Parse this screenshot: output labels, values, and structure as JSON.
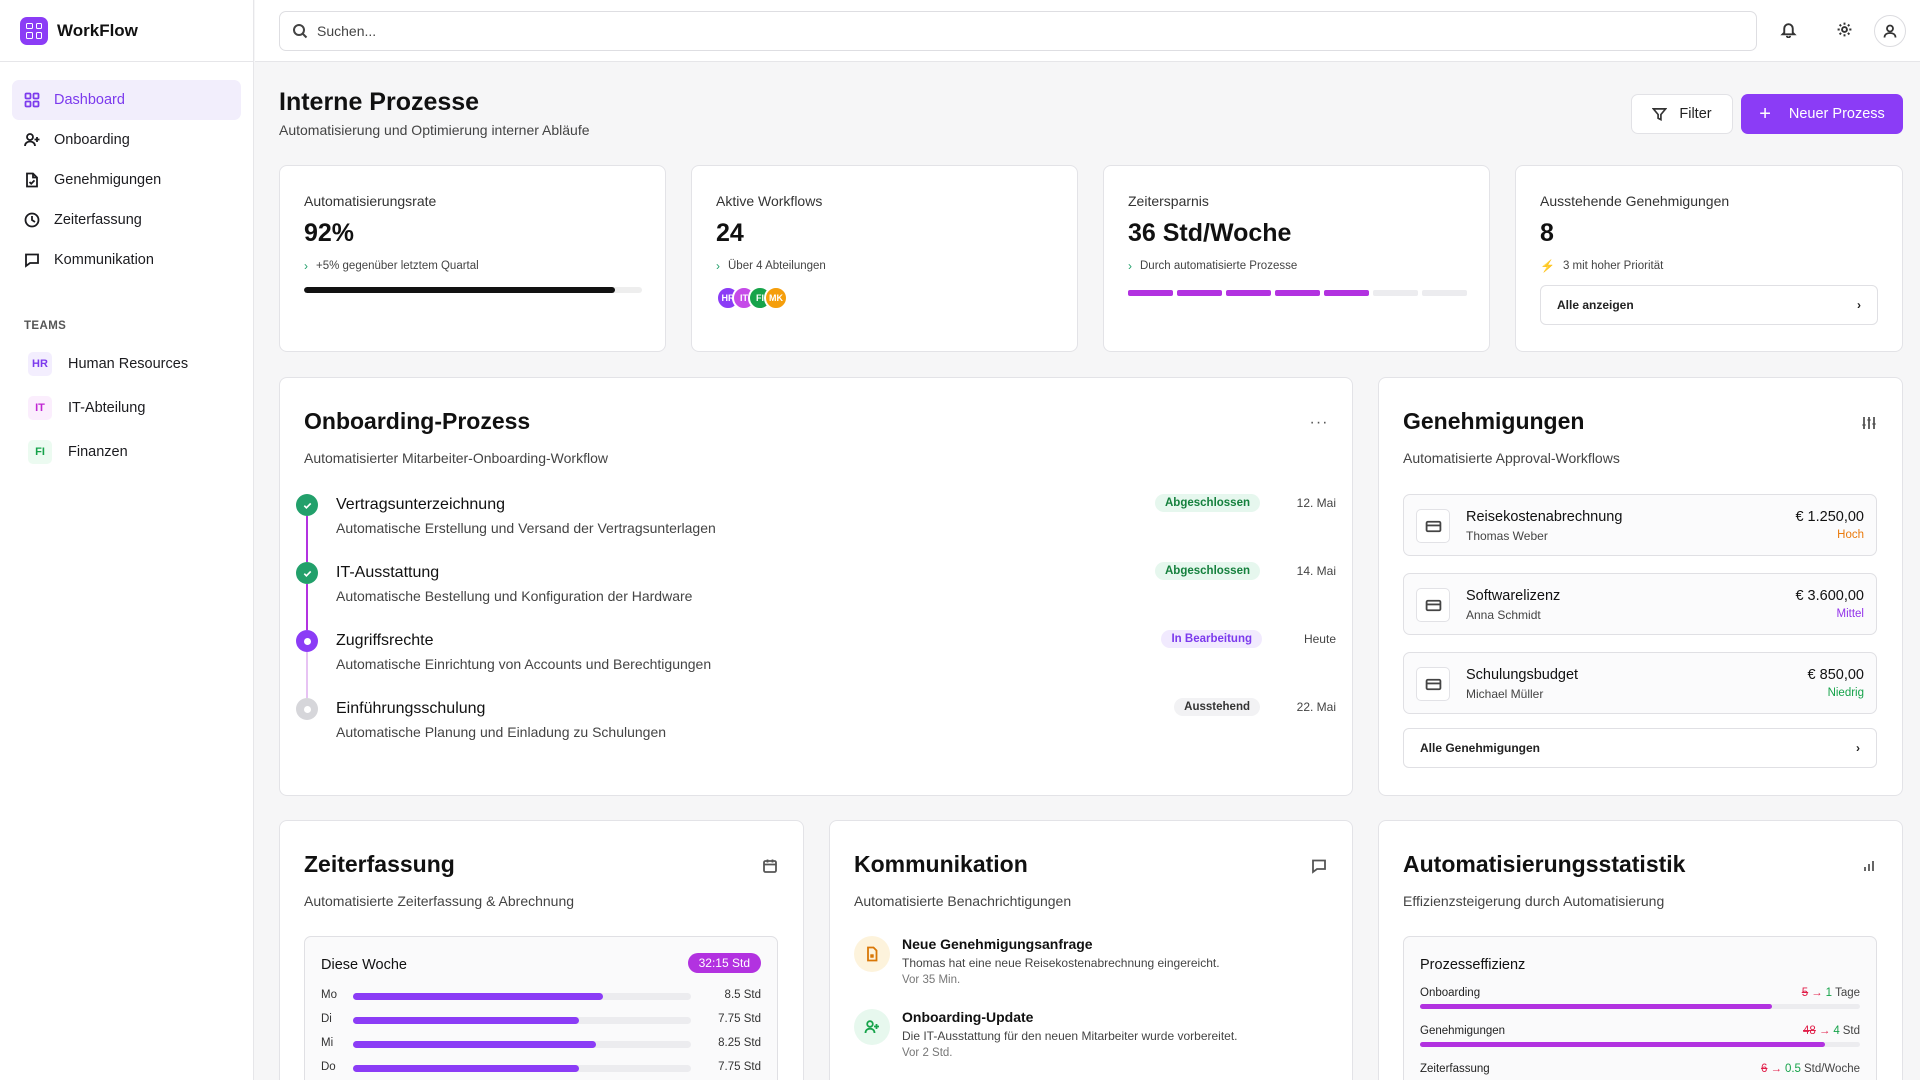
{
  "app": {
    "name": "WorkFlow"
  },
  "nav": [
    {
      "label": "Dashboard",
      "icon": "grid-icon",
      "active": true
    },
    {
      "label": "Onboarding",
      "icon": "user-plus-icon"
    },
    {
      "label": "Genehmigungen",
      "icon": "file-check-icon"
    },
    {
      "label": "Zeiterfassung",
      "icon": "clock-icon"
    },
    {
      "label": "Kommunikation",
      "icon": "message-icon"
    }
  ],
  "teams": {
    "label": "TEAMS",
    "items": [
      {
        "badge": "HR",
        "name": "Human Resources",
        "color": "#7c3aed",
        "bg": "#f3eefe"
      },
      {
        "badge": "IT",
        "name": "IT-Abteilung",
        "color": "#c026d3",
        "bg": "#fbeefd"
      },
      {
        "badge": "FI",
        "name": "Finanzen",
        "color": "#16a34a",
        "bg": "#ecfbf1"
      }
    ]
  },
  "search": {
    "placeholder": "Suchen..."
  },
  "header": {
    "title": "Interne Prozesse",
    "subtitle": "Automatisierung und Optimierung interner Abläufe",
    "filter_label": "Filter",
    "new_label": "Neuer Prozess"
  },
  "stats": {
    "automation": {
      "label": "Automatisierungsrate",
      "value": "92%",
      "note": "+5% gegenüber letztem Quartal",
      "progress": 92
    },
    "workflows": {
      "label": "Aktive Workflows",
      "value": "24",
      "note": "Über 4 Abteilungen",
      "avatars": [
        {
          "text": "HR",
          "color": "#8b3cf6"
        },
        {
          "text": "IT",
          "color": "#c54ae8"
        },
        {
          "text": "FI",
          "color": "#16a34a"
        },
        {
          "text": "MK",
          "color": "#f59e0b"
        }
      ]
    },
    "time": {
      "label": "Zeitersparnis",
      "value": "36 Std/Woche",
      "note": "Durch automatisierte Prozesse",
      "segments_total": 7,
      "segments_on": 5
    },
    "approvals": {
      "label": "Ausstehende Genehmigungen",
      "value": "8",
      "note": "3 mit hoher Priorität",
      "button": "Alle anzeigen"
    }
  },
  "onboarding": {
    "title": "Onboarding-Prozess",
    "subtitle": "Automatisierter Mitarbeiter-Onboarding-Workflow",
    "steps": [
      {
        "title": "Vertragsunterzeichnung",
        "desc": "Automatische Erstellung und Versand der Vertragsunterlagen",
        "status": "Abgeschlossen",
        "date": "12. Mai",
        "state": "done"
      },
      {
        "title": "IT-Ausstattung",
        "desc": "Automatische Bestellung und Konfiguration der Hardware",
        "status": "Abgeschlossen",
        "date": "14. Mai",
        "state": "done"
      },
      {
        "title": "Zugriffsrechte",
        "desc": "Automatische Einrichtung von Accounts und Berechtigungen",
        "status": "In Bearbeitung",
        "date": "Heute",
        "state": "progress"
      },
      {
        "title": "Einführungsschulung",
        "desc": "Automatische Planung und Einladung zu Schulungen",
        "status": "Ausstehend",
        "date": "22. Mai",
        "state": "pending"
      }
    ]
  },
  "approvals": {
    "title": "Genehmigungen",
    "subtitle": "Automatisierte Approval-Workflows",
    "items": [
      {
        "title": "Reisekostenabrechnung",
        "person": "Thomas Weber",
        "amount": "€ 1.250,00",
        "priority": "Hoch",
        "prio_color": "#ea7a0c"
      },
      {
        "title": "Softwarelizenz",
        "person": "Anna Schmidt",
        "amount": "€ 3.600,00",
        "priority": "Mittel",
        "prio_color": "#9333ea"
      },
      {
        "title": "Schulungsbudget",
        "person": "Michael Müller",
        "amount": "€ 850,00",
        "priority": "Niedrig",
        "prio_color": "#16a34a"
      }
    ],
    "all_label": "Alle Genehmigungen"
  },
  "timetracking": {
    "title": "Zeiterfassung",
    "subtitle": "Automatisierte Zeiterfassung & Abrechnung",
    "week_label": "Diese Woche",
    "week_total": "32:15 Std",
    "days": [
      {
        "day": "Mo",
        "value": "8.5 Std",
        "fraction": 0.74
      },
      {
        "day": "Di",
        "value": "7.75 Std",
        "fraction": 0.67
      },
      {
        "day": "Mi",
        "value": "8.25 Std",
        "fraction": 0.72
      },
      {
        "day": "Do",
        "value": "7.75 Std",
        "fraction": 0.67
      }
    ]
  },
  "communication": {
    "title": "Kommunikation",
    "subtitle": "Automatisierte Benachrichtigungen",
    "messages": [
      {
        "title": "Neue Genehmigungsanfrage",
        "text": "Thomas hat eine neue Reisekostenabrechnung eingereicht.",
        "time": "Vor 35 Min.",
        "icon": "document-icon",
        "color": "#d97706",
        "bg": "#fdf3dc"
      },
      {
        "title": "Onboarding-Update",
        "text": "Die IT-Ausstattung für den neuen Mitarbeiter wurde vorbereitet.",
        "time": "Vor 2 Std.",
        "icon": "user-plus-icon",
        "color": "#16a34a",
        "bg": "#e7f8ee"
      }
    ]
  },
  "statistics": {
    "title": "Automatisierungsstatistik",
    "subtitle": "Effizienzsteigerung durch Automatisierung",
    "box_title": "Prozesseffizienz",
    "rows": [
      {
        "label": "Onboarding",
        "old": "5",
        "new": "1",
        "unit": "Tage",
        "fraction": 0.8
      },
      {
        "label": "Genehmigungen",
        "old": "48",
        "new": "4",
        "unit": "Std",
        "fraction": 0.92
      },
      {
        "label": "Zeiterfassung",
        "old": "6",
        "new": "0.5",
        "unit": "Std/Woche",
        "fraction": 0.92
      }
    ]
  }
}
